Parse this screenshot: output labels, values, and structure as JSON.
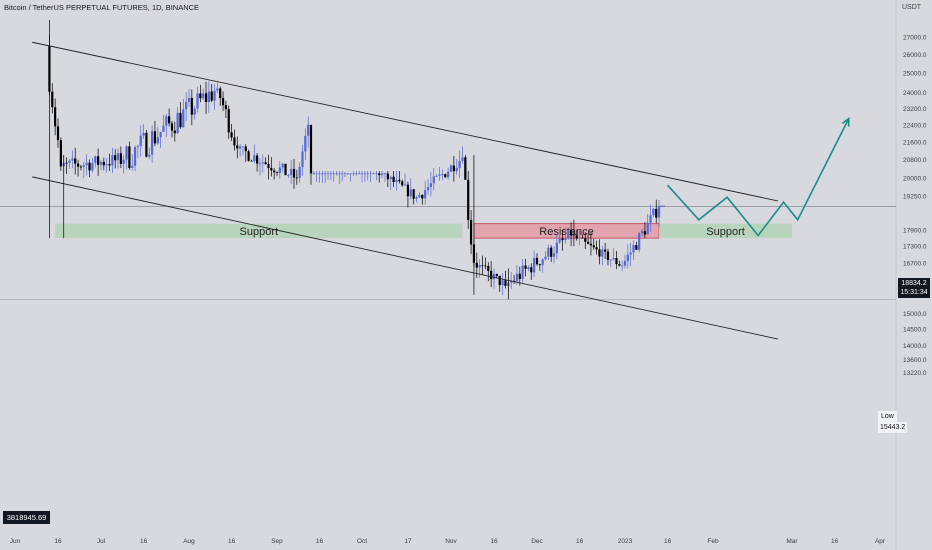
{
  "header": {
    "title": "Bitcoin / TetherUS PERPETUAL FUTURES, 1D, BINANCE"
  },
  "axis_unit": "USDT",
  "volume_box": "3818945.69",
  "price_tag": {
    "price": "18834.2",
    "countdown": "15:31:34"
  },
  "low_tag": {
    "label": "Low",
    "value": "15443.2"
  },
  "colors": {
    "background": "#d8d9de",
    "up_candle": "#5468d8",
    "down_candle": "#000000",
    "support_zone": "#b9d4bd",
    "resistance_zone": "#e2a4ae",
    "projection": "#1a8c86",
    "channel": "#222222"
  },
  "chart_data": {
    "type": "candlestick",
    "title": "Bitcoin / TetherUS PERPETUAL FUTURES, 1D, BINANCE",
    "ylabel": "USDT",
    "yscale": "log",
    "ylim": [
      13000,
      28000
    ],
    "y_ticks": [
      "27000.0",
      "26000.0",
      "25000.0",
      "24000.0",
      "23200.0",
      "22400.0",
      "21600.0",
      "20800.0",
      "20000.0",
      "19250.0",
      "17900.0",
      "17300.0",
      "16700.0",
      "16100.0",
      "15000.0",
      "14500.0",
      "14000.0",
      "13600.0",
      "13220.0"
    ],
    "x_ticks": [
      "Jun",
      "16",
      "Jul",
      "16",
      "Aug",
      "16",
      "Sep",
      "16",
      "Oct",
      "17",
      "Nov",
      "16",
      "Dec",
      "16",
      "2023",
      "16",
      "Feb",
      "Mar",
      "16",
      "Apr"
    ],
    "x_range": [
      "2022-06-01",
      "2023-04-05"
    ],
    "last_price": 18834.2,
    "countdown": "15:31:34",
    "low": 15443.2,
    "volume": "3818945.69",
    "ohlc_segments": [
      {
        "from": "2022-06-13",
        "to": "2022-06-18",
        "open": 26500,
        "close": 20500,
        "low": 17600,
        "high": 28000
      },
      {
        "from": "2022-06-18",
        "to": "2022-07-10",
        "open": 20500,
        "close": 20800,
        "low": 18800,
        "high": 22000
      },
      {
        "from": "2022-07-10",
        "to": "2022-08-12",
        "open": 20800,
        "close": 24200,
        "low": 18900,
        "high": 24900
      },
      {
        "from": "2022-08-12",
        "to": "2022-08-19",
        "open": 24200,
        "close": 21300,
        "low": 20800,
        "high": 25200
      },
      {
        "from": "2022-08-19",
        "to": "2022-09-09",
        "open": 21300,
        "close": 20000,
        "low": 18600,
        "high": 21500
      },
      {
        "from": "2022-09-09",
        "to": "2022-09-13",
        "open": 20000,
        "close": 22400,
        "low": 19800,
        "high": 22800
      },
      {
        "from": "2022-09-13",
        "to": "2022-10-21",
        "open": 22400,
        "close": 19200,
        "low": 18200,
        "high": 20300
      },
      {
        "from": "2022-10-21",
        "to": "2022-11-06",
        "open": 19200,
        "close": 20900,
        "low": 18900,
        "high": 21400
      },
      {
        "from": "2022-11-06",
        "to": "2022-11-10",
        "open": 20900,
        "close": 16700,
        "low": 15600,
        "high": 21000
      },
      {
        "from": "2022-11-10",
        "to": "2022-11-21",
        "open": 16700,
        "close": 15900,
        "low": 15450,
        "high": 17200
      },
      {
        "from": "2022-11-21",
        "to": "2022-12-14",
        "open": 15900,
        "close": 17700,
        "low": 15600,
        "high": 18200
      },
      {
        "from": "2022-12-14",
        "to": "2023-01-01",
        "open": 17700,
        "close": 16600,
        "low": 16400,
        "high": 17900
      },
      {
        "from": "2023-01-01",
        "to": "2023-01-14",
        "open": 16600,
        "close": 18834,
        "low": 16500,
        "high": 19100
      }
    ],
    "channel_lines": [
      {
        "name": "upper",
        "from": {
          "date": "2022-06-07",
          "price": 26700
        },
        "to": {
          "date": "2023-02-24",
          "price": 19050
        }
      },
      {
        "name": "lower",
        "from": {
          "date": "2022-06-07",
          "price": 20050
        },
        "to": {
          "date": "2023-02-24",
          "price": 14200
        }
      }
    ],
    "zones": [
      {
        "label": "Support",
        "from": "2022-06-15",
        "to": "2022-11-05",
        "low": 17600,
        "high": 18150,
        "color": "#b9d4bd"
      },
      {
        "label": "Resistance",
        "from": "2022-11-09",
        "to": "2023-01-13",
        "low": 17600,
        "high": 18150,
        "color": "#e2a4ae"
      },
      {
        "label": "Support",
        "from": "2023-01-13",
        "to": "2023-03-01",
        "low": 17600,
        "high": 18150,
        "color": "#b9d4bd"
      }
    ],
    "projection_path": [
      {
        "date": "2023-01-16",
        "price": 19700
      },
      {
        "date": "2023-01-27",
        "price": 18300
      },
      {
        "date": "2023-02-06",
        "price": 19200
      },
      {
        "date": "2023-02-17",
        "price": 17700
      },
      {
        "date": "2023-02-26",
        "price": 19000
      },
      {
        "date": "2023-03-03",
        "price": 18300
      },
      {
        "date": "2023-03-21",
        "price": 22700
      }
    ],
    "horizontal_lines": [
      {
        "name": "last-price",
        "price": 18834.2
      },
      {
        "name": "low",
        "price": 15443.2
      }
    ]
  }
}
